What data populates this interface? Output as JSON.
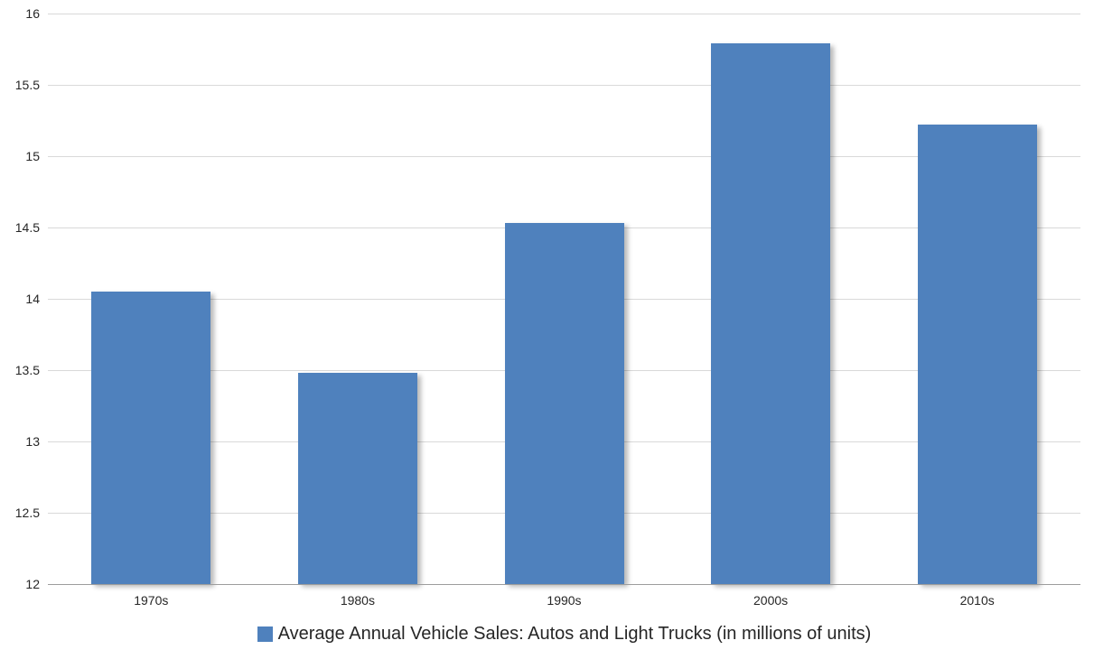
{
  "chart_data": {
    "type": "bar",
    "categories": [
      "1970s",
      "1980s",
      "1990s",
      "2000s",
      "2010s"
    ],
    "values": [
      14.05,
      13.48,
      14.53,
      15.79,
      15.22
    ],
    "series_name": "Average Annual Vehicle Sales: Autos and Light Trucks (in millions of units)",
    "title": "",
    "xlabel": "",
    "ylabel": "",
    "ylim": [
      12,
      16
    ],
    "ytick_step": 0.5,
    "yticks": [
      "12",
      "12.5",
      "13",
      "13.5",
      "14",
      "14.5",
      "15",
      "15.5",
      "16"
    ],
    "grid": true,
    "legend_position": "bottom",
    "bar_color": "#4F81BD",
    "gridline_color": "#D9D9D9",
    "axis_line_color": "#9D9D9D",
    "text_color": "#262626"
  }
}
